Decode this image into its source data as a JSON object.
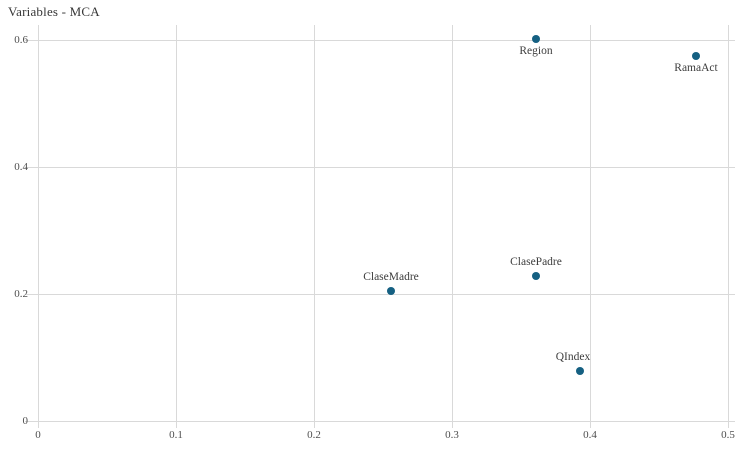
{
  "title": "Variables - MCA",
  "chart_data": {
    "type": "scatter",
    "title": "Variables - MCA",
    "xlabel": "",
    "ylabel": "",
    "xlim": [
      0,
      0.5
    ],
    "ylim": [
      0,
      0.6
    ],
    "grid": true,
    "x_ticks": [
      0,
      0.1,
      0.2,
      0.3,
      0.4,
      0.5
    ],
    "x_tick_labels": [
      "0",
      "0.1",
      "0.2",
      "0.3",
      "0.4",
      "0.5"
    ],
    "y_ticks": [
      0,
      0.2,
      0.4,
      0.6
    ],
    "y_tick_labels": [
      "0",
      "0.2",
      "0.4",
      "0.6"
    ],
    "points": [
      {
        "label": "Region",
        "x": 0.361,
        "y": 0.602,
        "label_position": "below",
        "label_dx": 0
      },
      {
        "label": "RamaAct",
        "x": 0.477,
        "y": 0.575,
        "label_position": "below",
        "label_dx": 0
      },
      {
        "label": "ClaseMadre",
        "x": 0.256,
        "y": 0.205,
        "label_position": "above",
        "label_dx": 0
      },
      {
        "label": "ClasePadre",
        "x": 0.361,
        "y": 0.228,
        "label_position": "above",
        "label_dx": 0
      },
      {
        "label": "QIndex",
        "x": 0.393,
        "y": 0.079,
        "label_position": "above",
        "label_dx": -7
      }
    ],
    "colors": {
      "point": "#156082",
      "gridline": "#d9d9d9",
      "axis_label": "#4f4f4f",
      "data_label": "#3d3d3d",
      "title": "#373737",
      "background": "#ffffff"
    }
  }
}
